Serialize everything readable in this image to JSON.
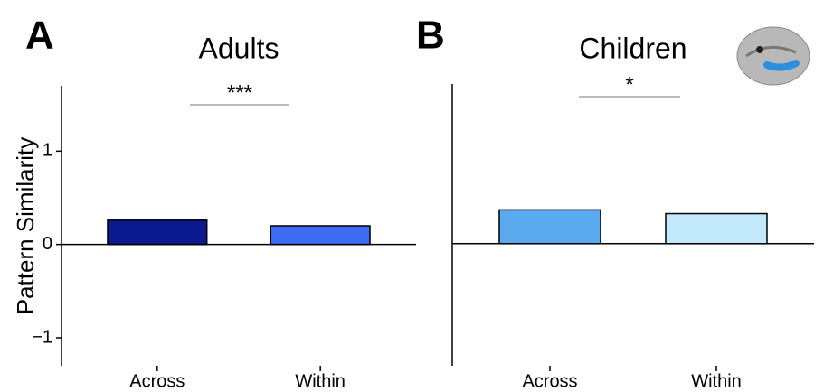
{
  "chart_data": [
    {
      "type": "bar",
      "panel": "A",
      "title": "Adults",
      "ylabel": "Pattern Similarity",
      "categories": [
        "Across",
        "Within"
      ],
      "values": [
        0.26,
        0.2
      ],
      "colors": [
        "#0b1a8f",
        "#3d6cf2"
      ],
      "ylim": [
        -1.3,
        1.7
      ],
      "yticks": [
        {
          "value": -1,
          "label": "−1"
        },
        0,
        1
      ],
      "annotation": "***"
    },
    {
      "type": "bar",
      "panel": "B",
      "title": "Children",
      "categories": [
        "Across",
        "Within"
      ],
      "values": [
        0.36,
        0.32
      ],
      "colors": [
        "#5aaaee",
        "#c2e8fb"
      ],
      "ylim": [
        -1.3,
        1.7
      ],
      "yticks": [],
      "annotation": "*"
    }
  ]
}
